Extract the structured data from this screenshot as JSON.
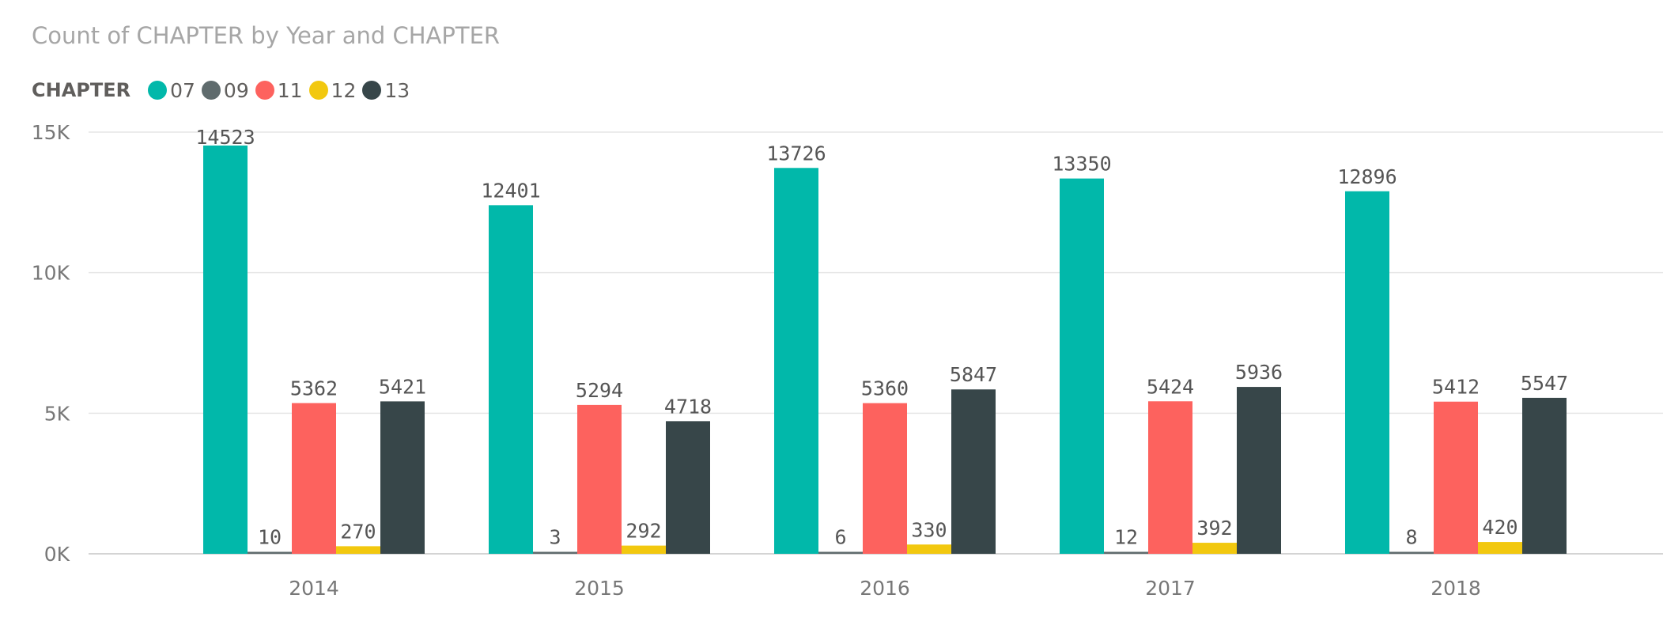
{
  "chart_data": {
    "type": "bar",
    "title": "Count of CHAPTER by Year and CHAPTER",
    "xlabel": "",
    "ylabel": "",
    "legend_title": "CHAPTER",
    "legend_position": "top-left",
    "grid": true,
    "ylim": [
      0,
      15000
    ],
    "y_ticks": [
      {
        "value": 0,
        "label": "0K"
      },
      {
        "value": 5000,
        "label": "5K"
      },
      {
        "value": 10000,
        "label": "10K"
      },
      {
        "value": 15000,
        "label": "15K"
      }
    ],
    "categories": [
      "2014",
      "2015",
      "2016",
      "2017",
      "2018"
    ],
    "series": [
      {
        "name": "07",
        "color": "#01b8aa",
        "values": [
          14523,
          12401,
          13726,
          13350,
          12896
        ]
      },
      {
        "name": "09",
        "color": "#5f6b6d",
        "values": [
          10,
          3,
          6,
          12,
          8
        ]
      },
      {
        "name": "11",
        "color": "#fd625e",
        "values": [
          5362,
          5294,
          5360,
          5424,
          5412
        ]
      },
      {
        "name": "12",
        "color": "#f2c80f",
        "values": [
          270,
          292,
          330,
          392,
          420
        ]
      },
      {
        "name": "13",
        "color": "#374649",
        "values": [
          5421,
          4718,
          5847,
          5936,
          5547
        ]
      }
    ]
  }
}
